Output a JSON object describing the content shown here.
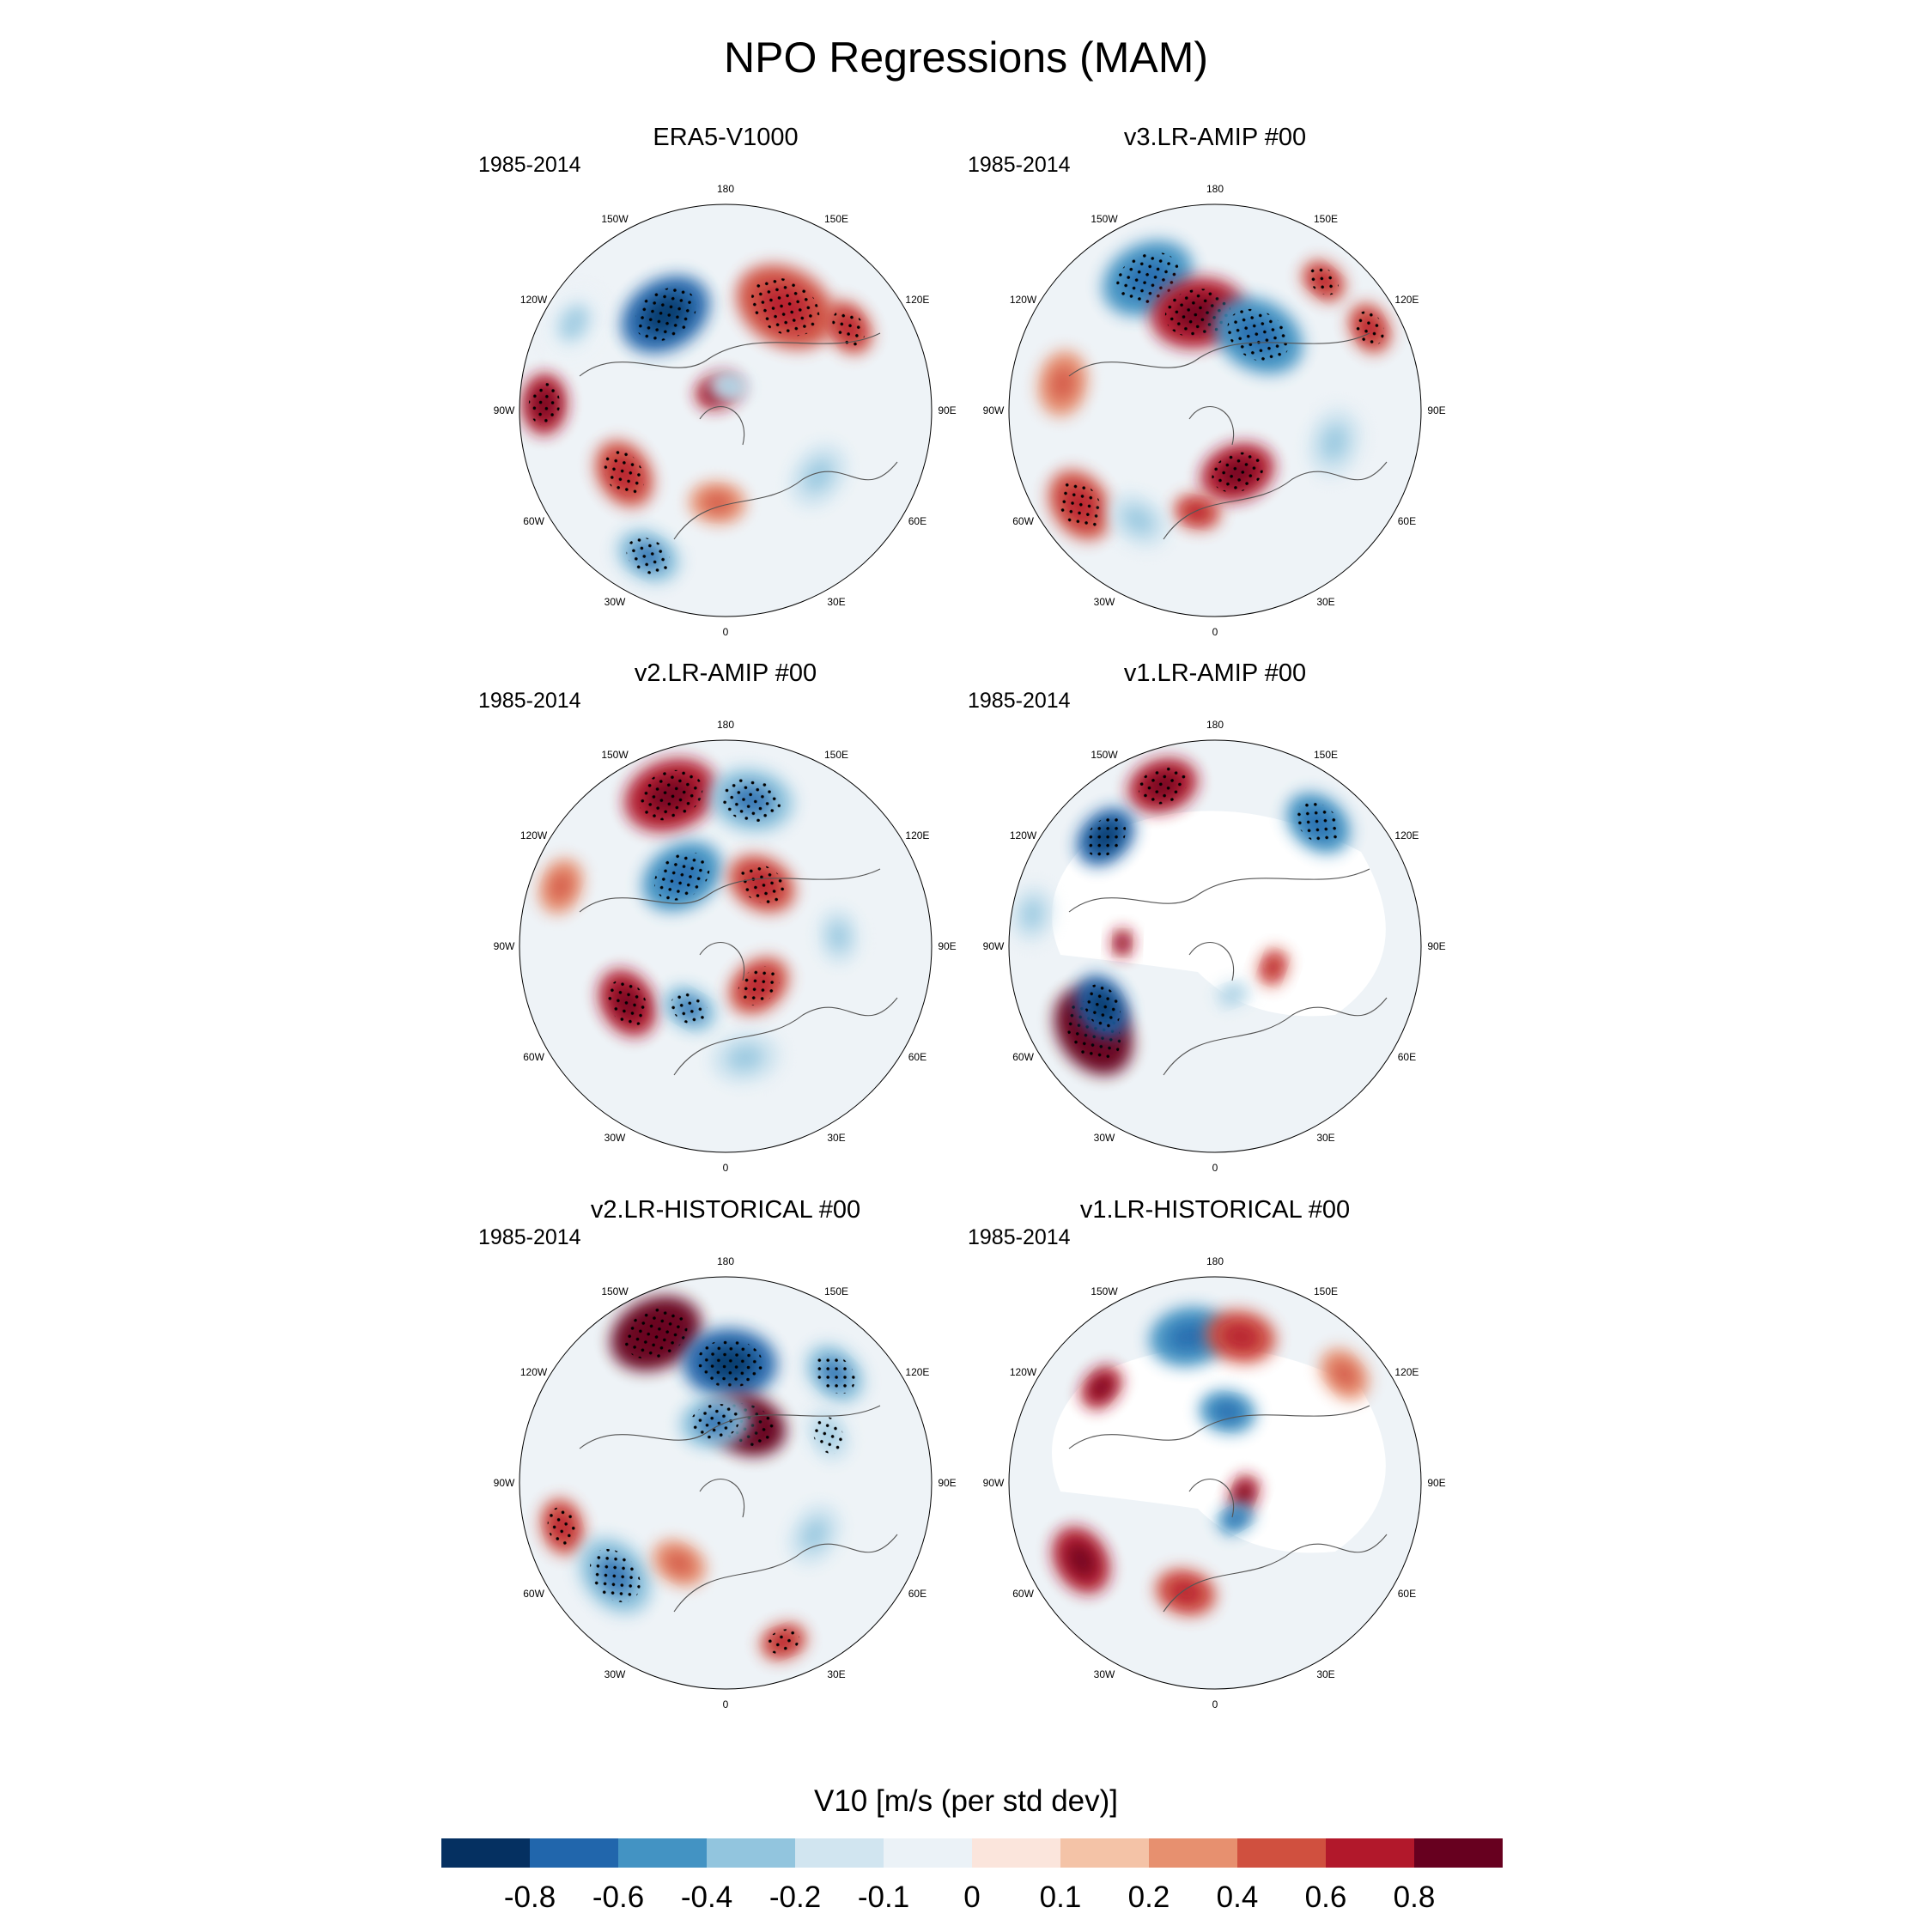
{
  "title": "NPO Regressions (MAM)",
  "colorbar": {
    "title": "V10 [m/s (per std dev)]",
    "levels": [
      "-0.8",
      "-0.6",
      "-0.4",
      "-0.2",
      "-0.1",
      "0",
      "0.1",
      "0.2",
      "0.4",
      "0.6",
      "0.8"
    ],
    "colors": [
      "#053061",
      "#2166ac",
      "#4393c3",
      "#92c5de",
      "#d1e5f0",
      "#ebf2f7",
      "#fbe5dc",
      "#f4c3a7",
      "#e7906f",
      "#d0503f",
      "#b2182b",
      "#67001f"
    ]
  },
  "lon_labels": [
    "180",
    "150E",
    "120E",
    "90E",
    "60E",
    "30E",
    "0",
    "30W",
    "60W",
    "90W",
    "120W",
    "150W"
  ],
  "chart_data": {
    "type": "heatmap",
    "projection": "polar stereographic, North Pole",
    "variable": "V10",
    "units": "m/s (per std dev)",
    "panels": [
      {
        "title": "ERA5-V1000",
        "period": "1985-2014",
        "masked": false,
        "anomalies": [
          {
            "lon": -148,
            "r": 0.55,
            "value": -0.8,
            "size": 0.2,
            "stipple": true
          },
          {
            "lon": 150,
            "r": 0.58,
            "value": 0.4,
            "size": 0.22,
            "stipple": true
          },
          {
            "lon": 124,
            "r": 0.72,
            "value": 0.4,
            "size": 0.12,
            "stipple": true
          },
          {
            "lon": -92,
            "r": 0.88,
            "value": 0.6,
            "size": 0.13,
            "stipple": true
          },
          {
            "lon": -160,
            "r": 0.1,
            "value": 0.6,
            "size": 0.1,
            "stipple": false
          },
          {
            "lon": 170,
            "r": 0.12,
            "value": -0.2,
            "size": 0.09,
            "stipple": false
          },
          {
            "lon": -58,
            "r": 0.58,
            "value": 0.4,
            "size": 0.15,
            "stipple": true
          },
          {
            "lon": -28,
            "r": 0.8,
            "value": -0.4,
            "size": 0.14,
            "stipple": true
          },
          {
            "lon": -5,
            "r": 0.45,
            "value": 0.2,
            "size": 0.12,
            "stipple": false
          },
          {
            "lon": 55,
            "r": 0.55,
            "value": -0.2,
            "size": 0.15,
            "stipple": false
          },
          {
            "lon": -120,
            "r": 0.85,
            "value": -0.1,
            "size": 0.16,
            "stipple": false
          }
        ]
      },
      {
        "title": "v3.LR-AMIP  #00",
        "period": "1985-2014",
        "masked": false,
        "anomalies": [
          {
            "lon": -153,
            "r": 0.72,
            "value": -0.6,
            "size": 0.2,
            "stipple": true
          },
          {
            "lon": -170,
            "r": 0.48,
            "value": 0.6,
            "size": 0.2,
            "stipple": true
          },
          {
            "lon": 150,
            "r": 0.42,
            "value": -0.6,
            "size": 0.2,
            "stipple": true
          },
          {
            "lon": 140,
            "r": 0.82,
            "value": 0.4,
            "size": 0.1,
            "stipple": true
          },
          {
            "lon": 118,
            "r": 0.85,
            "value": 0.4,
            "size": 0.11,
            "stipple": true
          },
          {
            "lon": 20,
            "r": 0.32,
            "value": 0.6,
            "size": 0.16,
            "stipple": true
          },
          {
            "lon": -10,
            "r": 0.5,
            "value": 0.4,
            "size": 0.1,
            "stipple": false
          },
          {
            "lon": -55,
            "r": 0.8,
            "value": 0.4,
            "size": 0.16,
            "stipple": true
          },
          {
            "lon": -35,
            "r": 0.65,
            "value": -0.2,
            "size": 0.14,
            "stipple": false
          },
          {
            "lon": 75,
            "r": 0.6,
            "value": -0.2,
            "size": 0.15,
            "stipple": false
          },
          {
            "lon": -100,
            "r": 0.75,
            "value": 0.2,
            "size": 0.14,
            "stipple": false
          }
        ]
      },
      {
        "title": "v2.LR-AMIP  #00",
        "period": "1985-2014",
        "masked": false,
        "anomalies": [
          {
            "lon": -160,
            "r": 0.78,
            "value": 0.6,
            "size": 0.2,
            "stipple": true
          },
          {
            "lon": 170,
            "r": 0.72,
            "value": -0.4,
            "size": 0.18,
            "stipple": true
          },
          {
            "lon": -148,
            "r": 0.4,
            "value": -0.6,
            "size": 0.18,
            "stipple": true
          },
          {
            "lon": 150,
            "r": 0.35,
            "value": 0.4,
            "size": 0.15,
            "stipple": true
          },
          {
            "lon": 40,
            "r": 0.25,
            "value": 0.4,
            "size": 0.14,
            "stipple": true
          },
          {
            "lon": -60,
            "r": 0.55,
            "value": 0.6,
            "size": 0.15,
            "stipple": true
          },
          {
            "lon": -30,
            "r": 0.35,
            "value": -0.4,
            "size": 0.12,
            "stipple": true
          },
          {
            "lon": 10,
            "r": 0.55,
            "value": -0.2,
            "size": 0.15,
            "stipple": false
          },
          {
            "lon": 95,
            "r": 0.55,
            "value": -0.2,
            "size": 0.12,
            "stipple": false
          },
          {
            "lon": -110,
            "r": 0.85,
            "value": 0.2,
            "size": 0.12,
            "stipple": false
          }
        ]
      },
      {
        "title": "v1.LR-AMIP  #00",
        "period": "1985-2014",
        "masked": true,
        "anomalies": [
          {
            "lon": -162,
            "r": 0.82,
            "value": 0.6,
            "size": 0.15,
            "stipple": true
          },
          {
            "lon": -135,
            "r": 0.75,
            "value": -0.8,
            "size": 0.14,
            "stipple": true
          },
          {
            "lon": 140,
            "r": 0.78,
            "value": -0.6,
            "size": 0.15,
            "stipple": true
          },
          {
            "lon": -55,
            "r": 0.72,
            "value": 0.8,
            "size": 0.2,
            "stipple": true
          },
          {
            "lon": -62,
            "r": 0.62,
            "value": -0.8,
            "size": 0.14,
            "stipple": true
          },
          {
            "lon": -92,
            "r": 0.45,
            "value": 0.6,
            "size": 0.06,
            "stipple": false
          },
          {
            "lon": 70,
            "r": 0.3,
            "value": 0.4,
            "size": 0.08,
            "stipple": false
          },
          {
            "lon": 20,
            "r": 0.25,
            "value": -0.2,
            "size": 0.08,
            "stipple": false
          },
          {
            "lon": -100,
            "r": 0.9,
            "value": -0.2,
            "size": 0.12,
            "stipple": false
          }
        ]
      },
      {
        "title": "v2.LR-HISTORICAL  #00",
        "period": "1985-2014",
        "masked": false,
        "anomalies": [
          {
            "lon": -155,
            "r": 0.8,
            "value": 0.8,
            "size": 0.2,
            "stipple": true
          },
          {
            "lon": 178,
            "r": 0.58,
            "value": -0.8,
            "size": 0.2,
            "stipple": true
          },
          {
            "lon": 160,
            "r": 0.3,
            "value": 0.8,
            "size": 0.17,
            "stipple": true
          },
          {
            "lon": -170,
            "r": 0.3,
            "value": -0.4,
            "size": 0.15,
            "stipple": true
          },
          {
            "lon": 135,
            "r": 0.75,
            "value": -0.4,
            "size": 0.14,
            "stipple": true
          },
          {
            "lon": 115,
            "r": 0.55,
            "value": -0.2,
            "size": 0.12,
            "stipple": true
          },
          {
            "lon": -75,
            "r": 0.82,
            "value": 0.4,
            "size": 0.12,
            "stipple": true
          },
          {
            "lon": -50,
            "r": 0.7,
            "value": -0.4,
            "size": 0.18,
            "stipple": true
          },
          {
            "lon": 20,
            "r": 0.82,
            "value": 0.4,
            "size": 0.1,
            "stipple": true
          },
          {
            "lon": -30,
            "r": 0.45,
            "value": 0.2,
            "size": 0.12,
            "stipple": false
          },
          {
            "lon": 60,
            "r": 0.5,
            "value": -0.2,
            "size": 0.14,
            "stipple": false
          }
        ]
      },
      {
        "title": "v1.LR-HISTORICAL  #00",
        "period": "1985-2014",
        "masked": true,
        "anomalies": [
          {
            "lon": -170,
            "r": 0.72,
            "value": -0.6,
            "size": 0.17,
            "stipple": false
          },
          {
            "lon": 170,
            "r": 0.72,
            "value": 0.4,
            "size": 0.15,
            "stipple": false
          },
          {
            "lon": -130,
            "r": 0.72,
            "value": 0.6,
            "size": 0.1,
            "stipple": false
          },
          {
            "lon": 170,
            "r": 0.35,
            "value": -0.6,
            "size": 0.12,
            "stipple": false
          },
          {
            "lon": -60,
            "r": 0.75,
            "value": 0.6,
            "size": 0.15,
            "stipple": false
          },
          {
            "lon": -15,
            "r": 0.55,
            "value": 0.4,
            "size": 0.13,
            "stipple": false
          },
          {
            "lon": 70,
            "r": 0.15,
            "value": 0.6,
            "size": 0.08,
            "stipple": false
          },
          {
            "lon": 30,
            "r": 0.2,
            "value": -0.6,
            "size": 0.08,
            "stipple": false
          },
          {
            "lon": 130,
            "r": 0.82,
            "value": 0.2,
            "size": 0.12,
            "stipple": false
          }
        ]
      }
    ]
  }
}
